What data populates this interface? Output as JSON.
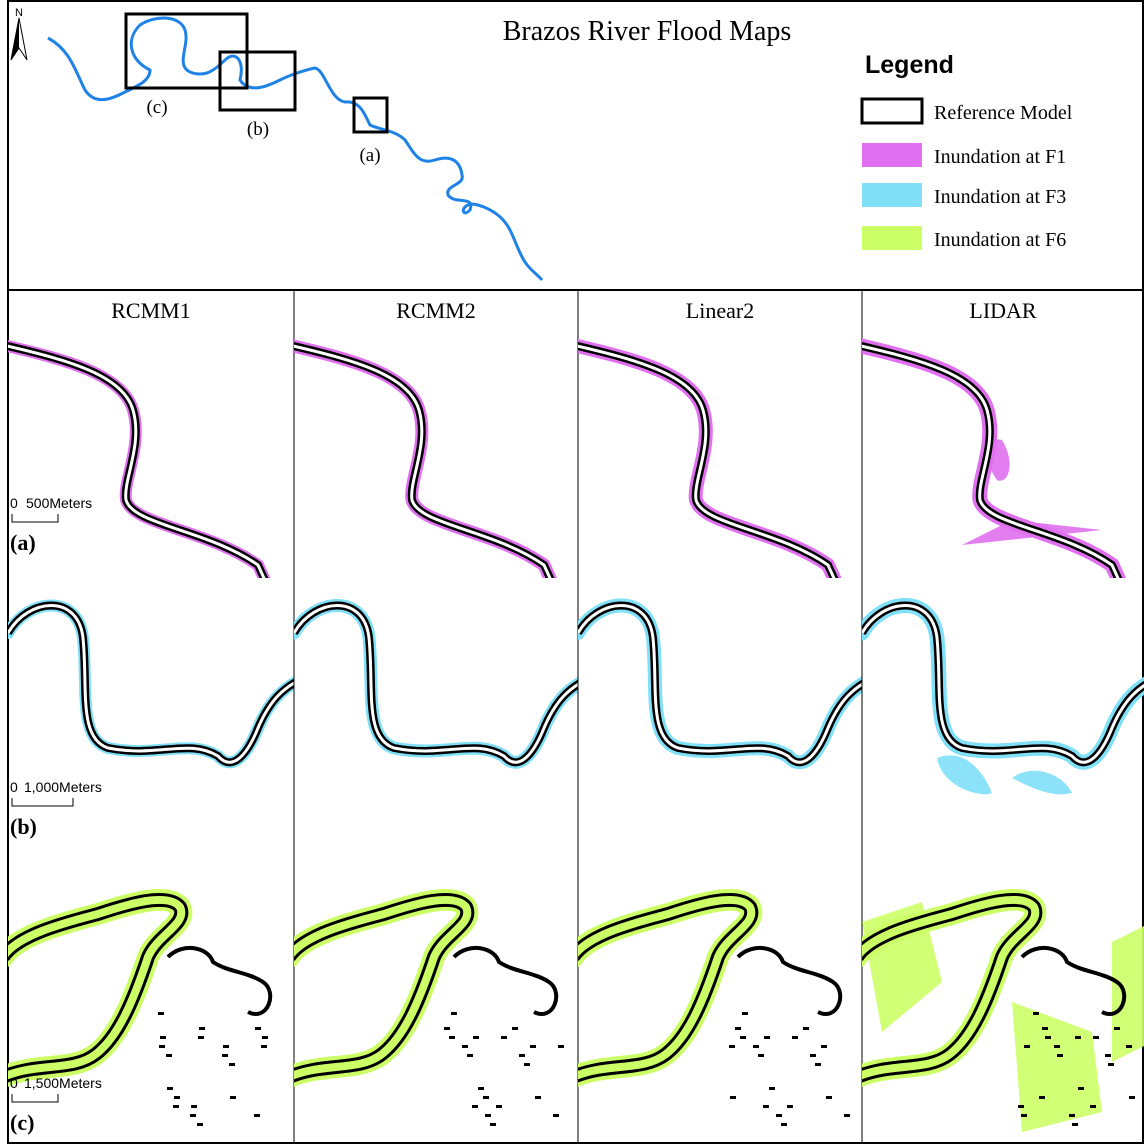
{
  "title": "Brazos River Flood Maps",
  "north": "N",
  "overview_labels": [
    "(c)",
    "(b)",
    "(a)"
  ],
  "legend": {
    "title": "Legend",
    "items": [
      "Reference Model",
      "Inundation at F1",
      "Inundation at F3",
      "Inundation at F6"
    ]
  },
  "columns": [
    "RCMM1",
    "RCMM2",
    "Linear2",
    "LIDAR"
  ],
  "rows": [
    {
      "label": "(a)",
      "scale_start": "0",
      "scale_end": "500Meters"
    },
    {
      "label": "(b)",
      "scale_start": "0",
      "scale_end": "1,000Meters"
    },
    {
      "label": "(c)",
      "scale_start": "0",
      "scale_end": "1,500Meters"
    }
  ]
}
